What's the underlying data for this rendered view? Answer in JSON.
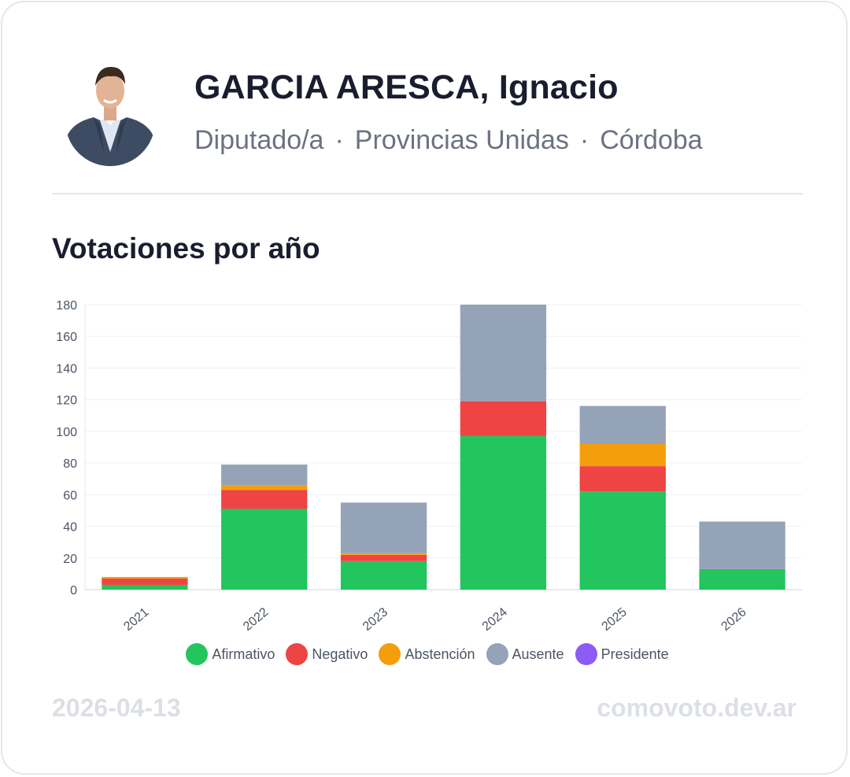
{
  "header": {
    "name": "GARCIA ARESCA, Ignacio",
    "role": "Diputado/a",
    "bloc": "Provincias Unidas",
    "province": "Córdoba",
    "separator": "·"
  },
  "section_title": "Votaciones por año",
  "footer": {
    "date": "2026-04-13",
    "site": "comovoto.dev.ar"
  },
  "colors": {
    "afirmativo": "#22c55e",
    "negativo": "#ef4444",
    "abstencion": "#f59e0b",
    "ausente": "#94a3b8",
    "presidente": "#8b5cf6"
  },
  "chart_data": {
    "type": "bar",
    "stacked": true,
    "categories": [
      "2021",
      "2022",
      "2023",
      "2024",
      "2025",
      "2026"
    ],
    "series": [
      {
        "name": "Afirmativo",
        "color": "#22c55e",
        "values": [
          3,
          51,
          18,
          97,
          62,
          13
        ]
      },
      {
        "name": "Negativo",
        "color": "#ef4444",
        "values": [
          4,
          12,
          4,
          22,
          16,
          0
        ]
      },
      {
        "name": "Abstención",
        "color": "#f59e0b",
        "values": [
          1,
          3,
          1,
          0,
          14,
          0
        ]
      },
      {
        "name": "Ausente",
        "color": "#94a3b8",
        "values": [
          0,
          13,
          32,
          61,
          24,
          30
        ]
      },
      {
        "name": "Presidente",
        "color": "#8b5cf6",
        "values": [
          0,
          0,
          0,
          0,
          0,
          0
        ]
      }
    ],
    "ylim": [
      0,
      180
    ],
    "yticks": [
      0,
      20,
      40,
      60,
      80,
      100,
      120,
      140,
      160,
      180
    ],
    "grid": true,
    "legend": "bottom"
  }
}
